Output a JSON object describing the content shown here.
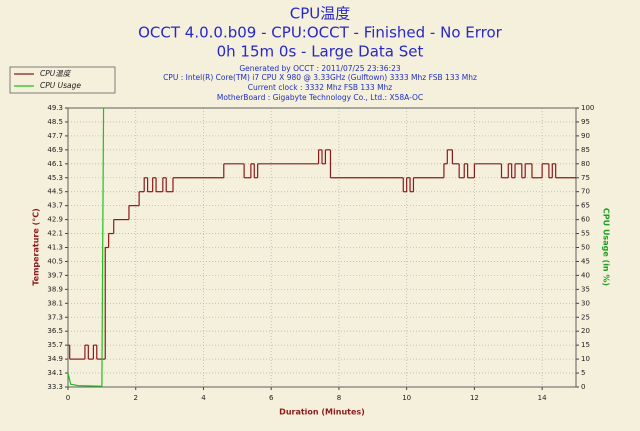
{
  "chart_data": {
    "type": "line",
    "title": "CPU温度",
    "subtitle": "OCCT 4.0.0.b09 - CPU:OCCT - Finished - No Error",
    "subtitle2": "0h 15m 0s - Large Data Set",
    "info": [
      "Generated by OCCT : 2011/07/25 23:36:23",
      "CPU : Intel(R) Core(TM) i7 CPU X 980 @ 3.33GHz (Gulftown) 3333 Mhz FSB 133 Mhz",
      "Current clock : 3332 Mhz FSB 133 Mhz",
      "MotherBoard : Gigabyte Technology Co., Ltd.: X58A-OC"
    ],
    "xlabel": "Duration (Minutes)",
    "ylabel": "Temperature (°C)",
    "y2label": "CPU Usage (in %)",
    "xlim": [
      0,
      15
    ],
    "xticks": [
      0,
      2,
      4,
      6,
      8,
      10,
      12,
      14
    ],
    "ylim": [
      33.3,
      49.3
    ],
    "yticks": [
      33.3,
      34.1,
      34.9,
      35.7,
      36.5,
      37.3,
      38.1,
      38.9,
      39.7,
      40.5,
      41.3,
      42.1,
      42.9,
      43.7,
      44.5,
      45.3,
      46.1,
      46.9,
      47.7,
      48.5,
      49.3
    ],
    "y2lim": [
      0,
      100
    ],
    "y2ticks": [
      0,
      5,
      10,
      15,
      20,
      25,
      30,
      35,
      40,
      45,
      50,
      55,
      60,
      65,
      70,
      75,
      80,
      85,
      90,
      95,
      100
    ],
    "grid": true,
    "legend": "top-left",
    "series": [
      {
        "name": "CPU温度",
        "color": "#8b1a1a",
        "step": true,
        "x": [
          0,
          0.05,
          0.5,
          0.6,
          0.75,
          0.85,
          1.1,
          1.2,
          1.35,
          1.8,
          2.1,
          2.25,
          2.35,
          2.5,
          2.6,
          2.8,
          2.9,
          3.1,
          4.6,
          5.2,
          5.4,
          5.5,
          5.6,
          7.4,
          7.5,
          7.6,
          7.75,
          9.9,
          10.0,
          10.1,
          10.2,
          11.1,
          11.2,
          11.35,
          11.55,
          11.7,
          11.8,
          12.0,
          12.8,
          13.0,
          13.1,
          13.2,
          13.4,
          13.5,
          13.7,
          14.0,
          14.2,
          14.3,
          14.4
        ],
        "values": [
          35.7,
          34.9,
          35.7,
          34.9,
          35.7,
          34.9,
          41.3,
          42.1,
          42.9,
          43.7,
          44.5,
          45.3,
          44.5,
          45.3,
          44.5,
          45.3,
          44.5,
          45.3,
          46.1,
          45.3,
          46.1,
          45.3,
          46.1,
          46.9,
          46.1,
          46.9,
          45.3,
          44.5,
          45.3,
          44.5,
          45.3,
          46.1,
          46.9,
          46.1,
          45.3,
          46.1,
          45.3,
          46.1,
          45.3,
          46.1,
          45.3,
          46.1,
          45.3,
          46.1,
          45.3,
          46.1,
          45.3,
          46.1,
          45.3
        ]
      },
      {
        "name": "CPU Usage",
        "color": "#20c020",
        "axis": "y2",
        "x": [
          0,
          0.08,
          0.3,
          1.0,
          1.05,
          1.1
        ],
        "values": [
          5,
          1,
          0.5,
          0.3,
          100,
          100
        ]
      }
    ]
  }
}
